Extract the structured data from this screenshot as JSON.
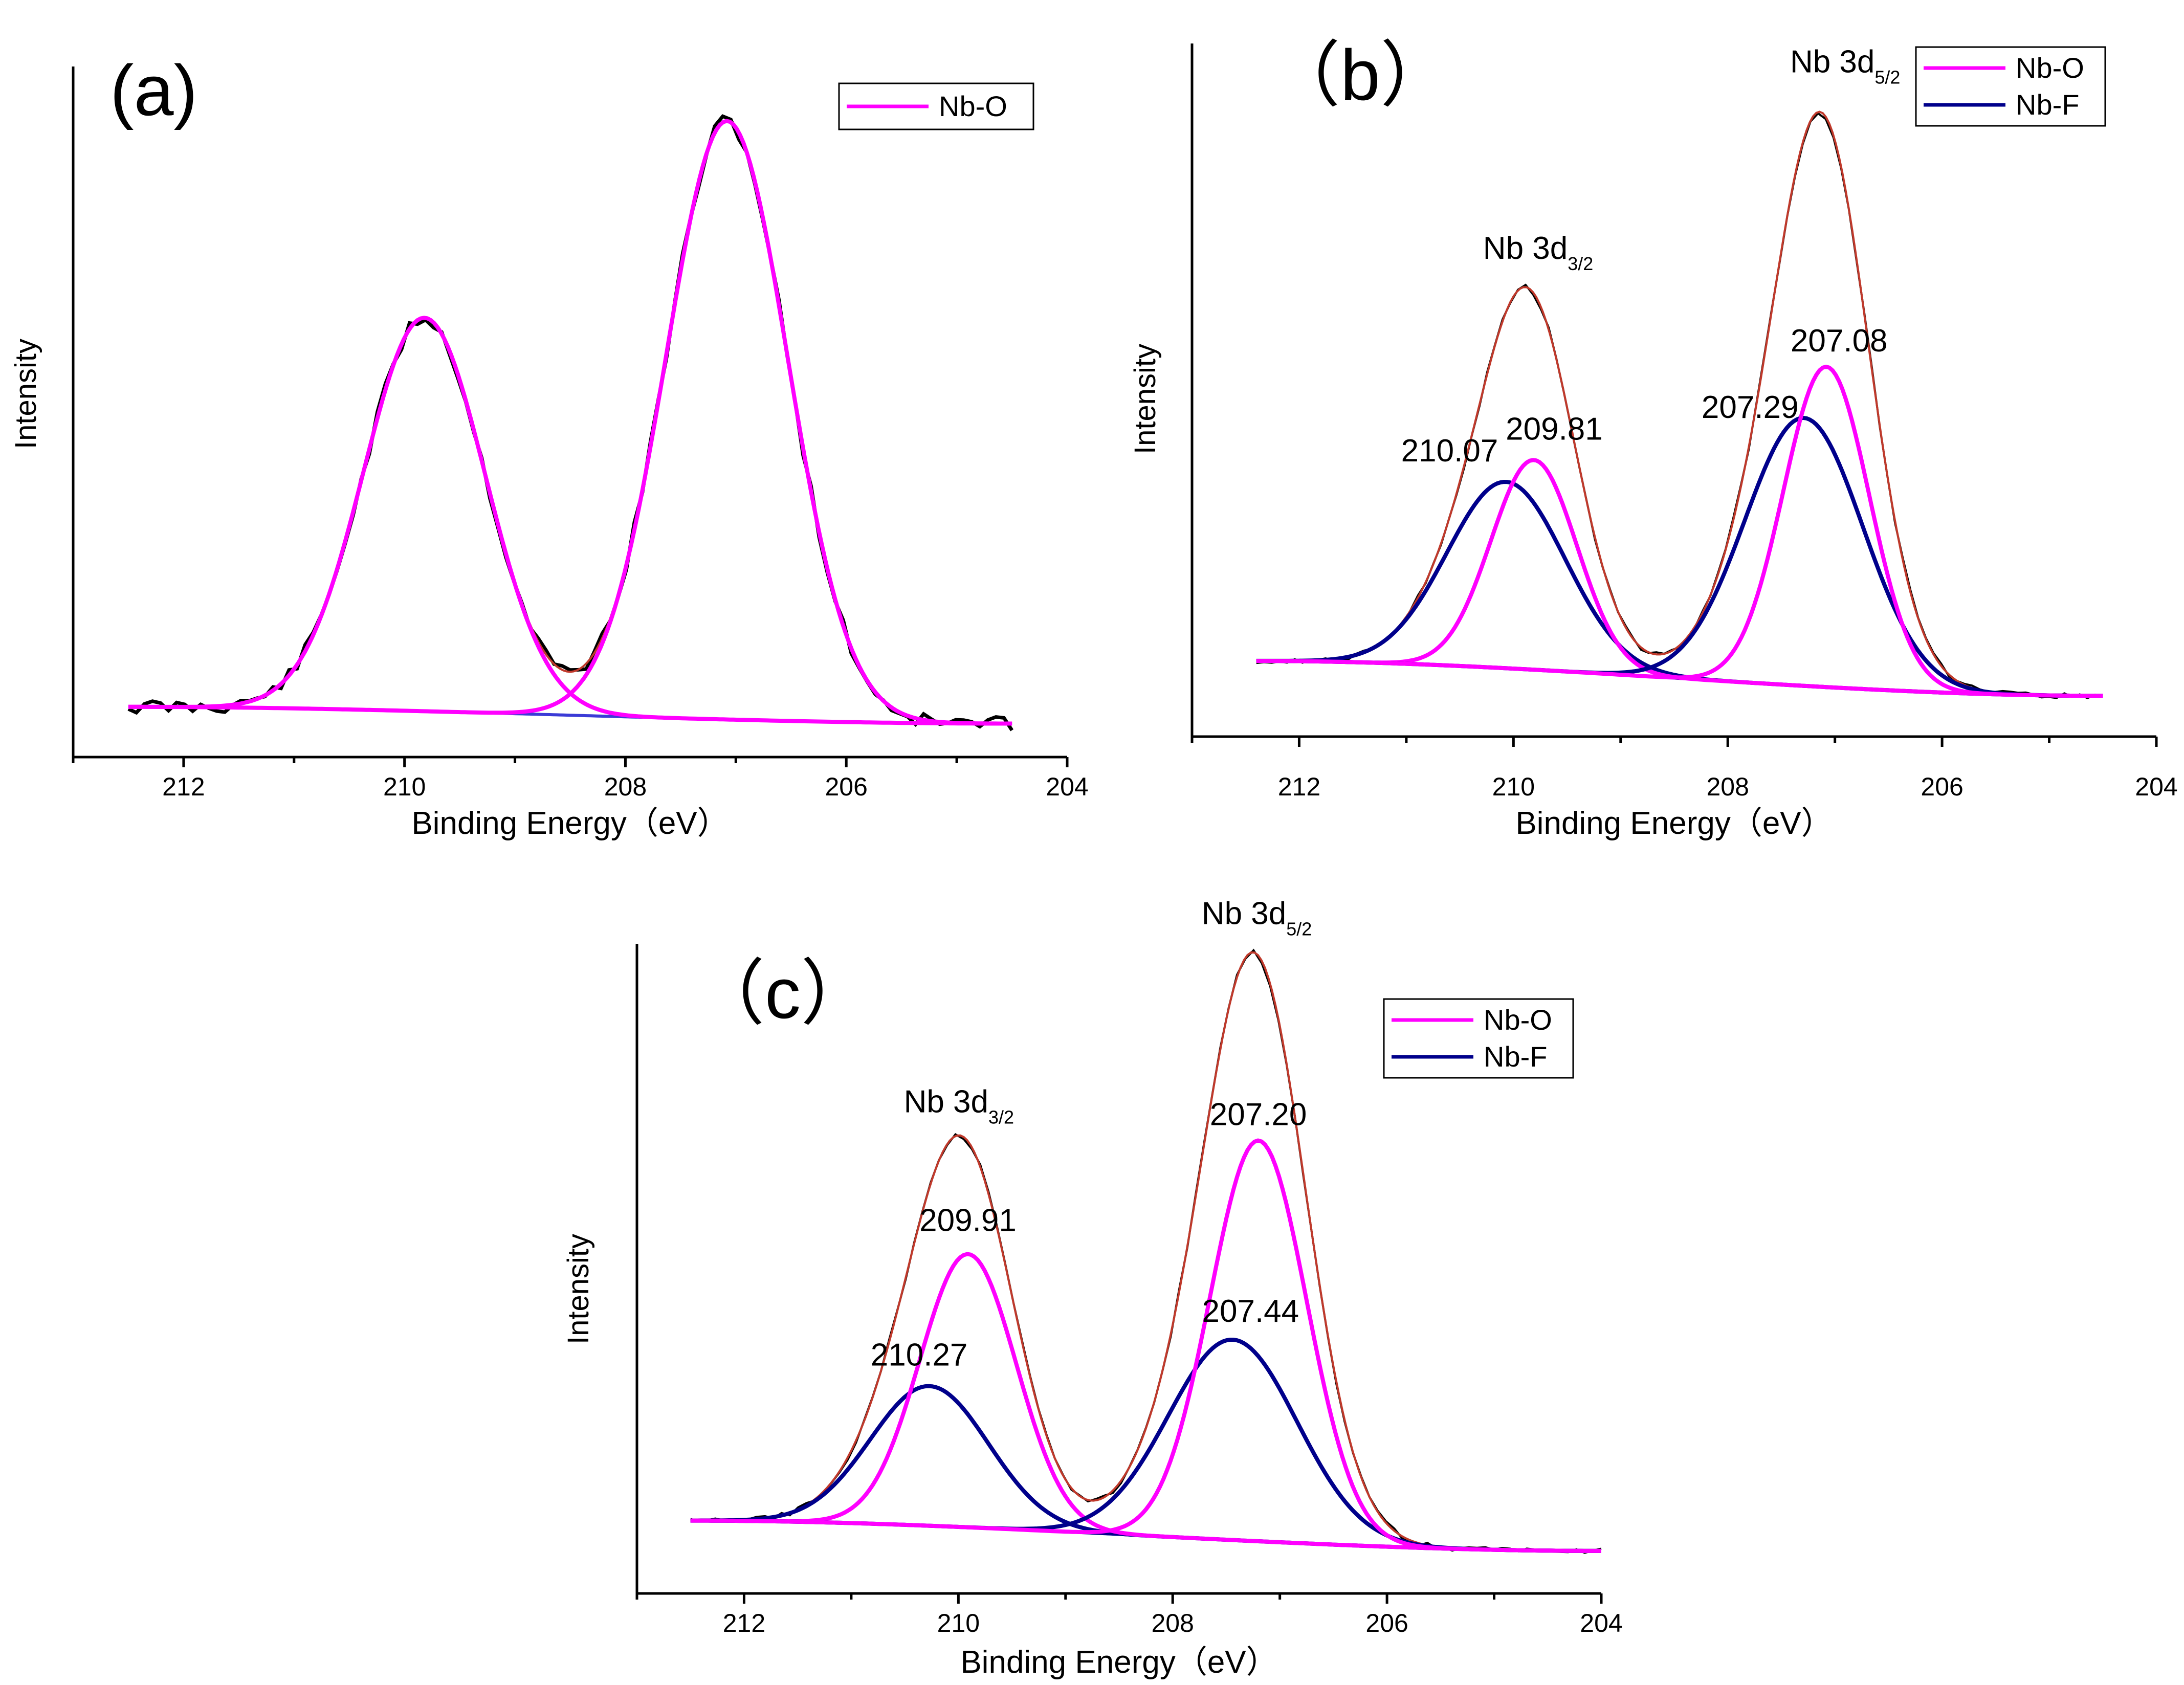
{
  "colors": {
    "nb_o": "#ff00ff",
    "nb_f": "#00008b",
    "envelope": "#c0392b",
    "raw": "#000000",
    "axis": "#000000"
  },
  "chart_data": [
    {
      "panel": "(a)",
      "type": "line",
      "xlabel": "Binding Energy（eV）",
      "ylabel": "Intensity",
      "xlim": [
        213,
        204
      ],
      "xticks": [
        212,
        210,
        208,
        206,
        204
      ],
      "legend": {
        "placement": "top-right",
        "entries": [
          {
            "name": "Nb-O",
            "color": "#ff00ff"
          }
        ]
      },
      "background": {
        "start": [
          212.5,
          0.02
        ],
        "end": [
          204.5,
          -0.02
        ]
      },
      "peaks": [
        {
          "series": "Nb-O",
          "center": 209.82,
          "height": 0.94,
          "sigma": 0.55
        },
        {
          "series": "Nb-O",
          "center": 207.08,
          "height": 1.43,
          "sigma": 0.55
        }
      ],
      "annotations": []
    },
    {
      "panel": "（b）",
      "type": "line",
      "xlabel": "Binding Energy（eV）",
      "ylabel": "Intensity",
      "xlim": [
        213,
        204
      ],
      "xticks": [
        212,
        210,
        208,
        206,
        204
      ],
      "legend": {
        "placement": "top-right",
        "entries": [
          {
            "name": "Nb-O",
            "color": "#ff00ff"
          },
          {
            "name": "Nb-F",
            "color": "#00008b"
          }
        ]
      },
      "background": {
        "start": [
          212.4,
          0.0
        ],
        "end": [
          204.5,
          -0.06
        ]
      },
      "peaks": [
        {
          "series": "Nb-F",
          "center": 210.07,
          "height": 0.32,
          "sigma": 0.55
        },
        {
          "series": "Nb-O",
          "center": 209.81,
          "height": 0.36,
          "sigma": 0.4
        },
        {
          "series": "Nb-F",
          "center": 207.29,
          "height": 0.46,
          "sigma": 0.55
        },
        {
          "series": "Nb-O",
          "center": 207.08,
          "height": 0.55,
          "sigma": 0.4
        }
      ],
      "annotations": [
        {
          "text": "Nb 3d",
          "sub": "5/2",
          "anchor_x": 207.18
        },
        {
          "text": "Nb 3d",
          "sub": "3/2",
          "anchor_x": 209.95
        },
        {
          "text": "207.08",
          "anchor_x": 207.08
        },
        {
          "text": "207.29",
          "anchor_x": 207.29
        },
        {
          "text": "209.81",
          "anchor_x": 209.81
        },
        {
          "text": "210.07",
          "anchor_x": 210.07
        }
      ]
    },
    {
      "panel": "（c）",
      "type": "line",
      "xlabel": "Binding Energy（eV）",
      "ylabel": "Intensity",
      "xlim": [
        213,
        204
      ],
      "xticks": [
        212,
        210,
        208,
        206,
        204
      ],
      "legend": {
        "placement": "top-right",
        "entries": [
          {
            "name": "Nb-O",
            "color": "#ff00ff"
          },
          {
            "name": "Nb-F",
            "color": "#00008b"
          }
        ]
      },
      "background": {
        "start": [
          212.5,
          0.0
        ],
        "end": [
          204.0,
          -0.05
        ]
      },
      "peaks": [
        {
          "series": "Nb-F",
          "center": 210.27,
          "height": 0.23,
          "sigma": 0.55
        },
        {
          "series": "Nb-O",
          "center": 209.91,
          "height": 0.45,
          "sigma": 0.45
        },
        {
          "series": "Nb-F",
          "center": 207.44,
          "height": 0.33,
          "sigma": 0.6
        },
        {
          "series": "Nb-O",
          "center": 207.2,
          "height": 0.66,
          "sigma": 0.45
        }
      ],
      "annotations": [
        {
          "text": "Nb 3d",
          "sub": "5/2",
          "anchor_x": 207.3
        },
        {
          "text": "Nb 3d",
          "sub": "3/2",
          "anchor_x": 210.08
        },
        {
          "text": "207.20",
          "anchor_x": 207.2
        },
        {
          "text": "207.44",
          "anchor_x": 207.44
        },
        {
          "text": "209.91",
          "anchor_x": 209.91
        },
        {
          "text": "210.27",
          "anchor_x": 210.27
        }
      ]
    }
  ]
}
